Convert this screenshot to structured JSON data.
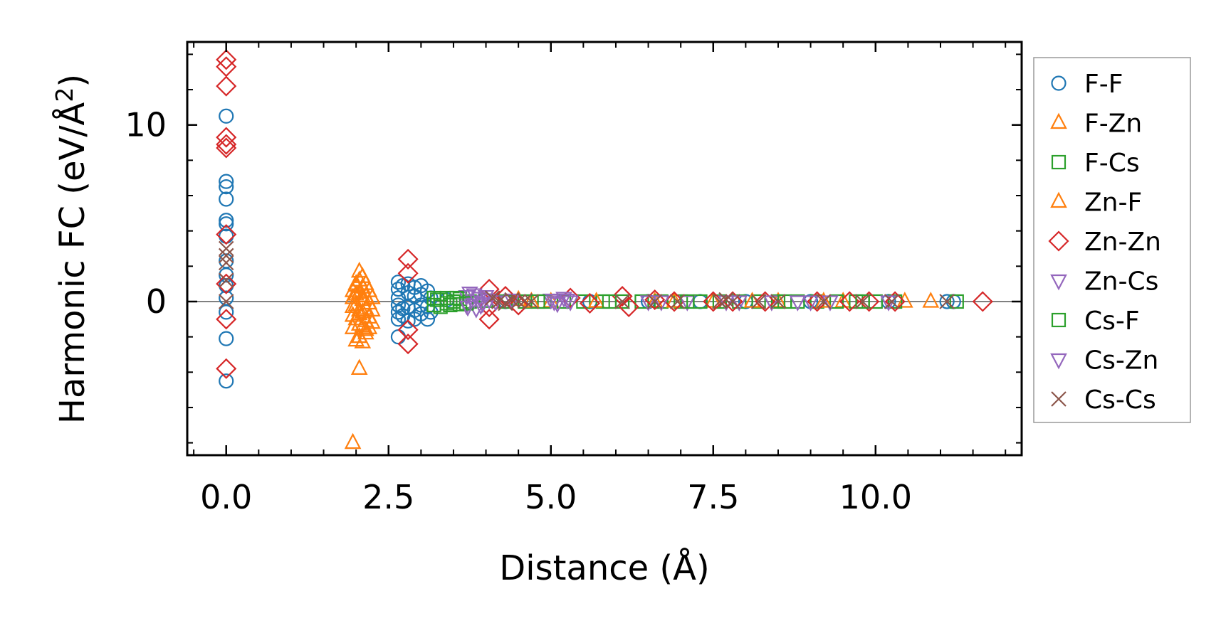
{
  "chart_data": {
    "type": "scatter",
    "title": "",
    "xlabel": "Distance (Å)",
    "ylabel_prefix": "Harmonic FC (eV/Å",
    "ylabel_sup": "2",
    "ylabel_suffix": ")",
    "xlim": [
      -0.6,
      12.25
    ],
    "ylim": [
      -8.7,
      14.7
    ],
    "xticks": [
      0.0,
      2.5,
      5.0,
      7.5,
      10.0
    ],
    "xtick_labels": [
      "0.0",
      "2.5",
      "5.0",
      "7.5",
      "10.0"
    ],
    "xminor_step": 0.5,
    "yticks": [
      0,
      10
    ],
    "ytick_labels": [
      "0",
      "10"
    ],
    "yminor_step": 2,
    "zero_line": true,
    "legend_position": "right-outside",
    "series": [
      {
        "name": "F-F",
        "marker": "circle",
        "color": "#1f77b4",
        "points": [
          [
            0,
            10.5
          ],
          [
            0,
            6.8
          ],
          [
            0,
            6.5
          ],
          [
            0,
            5.8
          ],
          [
            0,
            4.6
          ],
          [
            0,
            4.4
          ],
          [
            0,
            3.7
          ],
          [
            0,
            2.3
          ],
          [
            0,
            1.5
          ],
          [
            0,
            0.9
          ],
          [
            0,
            0.2
          ],
          [
            0,
            -0.6
          ],
          [
            0,
            -2.1
          ],
          [
            0,
            -4.5
          ],
          [
            2.65,
            1.1
          ],
          [
            2.65,
            0.7
          ],
          [
            2.65,
            0.2
          ],
          [
            2.65,
            -0.2
          ],
          [
            2.65,
            -0.6
          ],
          [
            2.65,
            -1.0
          ],
          [
            2.65,
            -2.0
          ],
          [
            2.72,
            0.9
          ],
          [
            2.72,
            -0.4
          ],
          [
            2.72,
            -0.8
          ],
          [
            2.8,
            1.0
          ],
          [
            2.8,
            0.5
          ],
          [
            2.8,
            -0.3
          ],
          [
            2.8,
            -1.1
          ],
          [
            2.9,
            0.8
          ],
          [
            2.9,
            0.3
          ],
          [
            2.9,
            -0.5
          ],
          [
            2.9,
            -1.0
          ],
          [
            3.0,
            0.9
          ],
          [
            3.0,
            0.4
          ],
          [
            3.0,
            -0.2
          ],
          [
            3.0,
            -0.7
          ],
          [
            3.1,
            0.6
          ],
          [
            3.1,
            -0.3
          ],
          [
            3.1,
            -1.0
          ],
          [
            3.15,
            0.2
          ],
          [
            3.15,
            -0.6
          ],
          [
            3.4,
            0.1
          ],
          [
            4.3,
            0.0
          ],
          [
            5.6,
            0.0
          ],
          [
            6.5,
            0.0
          ],
          [
            7.3,
            0.0
          ],
          [
            8.0,
            0.0
          ],
          [
            9.0,
            0.0
          ],
          [
            10.2,
            0.0
          ],
          [
            11.1,
            0.0
          ],
          [
            11.2,
            0.0
          ]
        ]
      },
      {
        "name": "F-Zn",
        "marker": "triangle-up",
        "color": "#ff7f0e",
        "points": [
          [
            1.95,
            -8.0
          ],
          [
            1.95,
            0.6
          ],
          [
            1.95,
            0.2
          ],
          [
            1.95,
            -0.3
          ],
          [
            1.95,
            -0.8
          ],
          [
            1.95,
            -1.5
          ],
          [
            2.0,
            1.0
          ],
          [
            2.0,
            0.4
          ],
          [
            2.0,
            -0.2
          ],
          [
            2.0,
            -1.0
          ],
          [
            2.0,
            -2.2
          ],
          [
            2.05,
            -3.8
          ],
          [
            2.05,
            1.7
          ],
          [
            2.05,
            1.2
          ],
          [
            2.05,
            0.5
          ],
          [
            2.05,
            -0.5
          ],
          [
            2.05,
            -1.3
          ],
          [
            2.05,
            -2.0
          ],
          [
            2.1,
            1.4
          ],
          [
            2.1,
            0.8
          ],
          [
            2.1,
            0.1
          ],
          [
            2.1,
            -0.6
          ],
          [
            2.1,
            -1.4
          ],
          [
            2.1,
            -2.3
          ],
          [
            2.15,
            1.0
          ],
          [
            2.15,
            0.3
          ],
          [
            2.15,
            -0.4
          ],
          [
            2.15,
            -1.1
          ],
          [
            2.15,
            -1.8
          ],
          [
            2.2,
            0.6
          ],
          [
            2.2,
            -0.1
          ],
          [
            2.2,
            -0.9
          ],
          [
            2.2,
            -1.5
          ],
          [
            2.25,
            0.2
          ],
          [
            2.25,
            -0.5
          ],
          [
            2.25,
            -1.2
          ],
          [
            4.5,
            0.1
          ],
          [
            5.0,
            0.0
          ],
          [
            6.6,
            0.0
          ],
          [
            7.5,
            0.0
          ],
          [
            8.5,
            0.0
          ],
          [
            9.5,
            0.0
          ],
          [
            10.45,
            0.0
          ],
          [
            10.85,
            0.0
          ]
        ]
      },
      {
        "name": "F-Cs",
        "marker": "square",
        "color": "#2ca02c",
        "points": [
          [
            3.2,
            0.2
          ],
          [
            3.2,
            -0.2
          ],
          [
            3.3,
            0.1
          ],
          [
            3.3,
            -0.3
          ],
          [
            3.4,
            0.2
          ],
          [
            3.4,
            -0.1
          ],
          [
            3.5,
            0.0
          ],
          [
            3.6,
            0.15
          ],
          [
            3.6,
            -0.15
          ],
          [
            3.75,
            0.0
          ],
          [
            4.0,
            0.05
          ],
          [
            4.3,
            0.0
          ],
          [
            4.6,
            0.0
          ],
          [
            4.9,
            0.0
          ],
          [
            5.2,
            0.0
          ],
          [
            5.5,
            0.0
          ],
          [
            5.8,
            0.0
          ],
          [
            6.1,
            0.0
          ],
          [
            6.4,
            0.0
          ],
          [
            6.7,
            0.0
          ],
          [
            7.0,
            0.0
          ],
          [
            7.3,
            0.0
          ],
          [
            7.6,
            0.0
          ],
          [
            7.9,
            0.0
          ],
          [
            8.2,
            0.0
          ],
          [
            8.5,
            0.0
          ],
          [
            8.8,
            0.0
          ],
          [
            9.1,
            0.0
          ],
          [
            9.4,
            0.0
          ],
          [
            9.7,
            0.0
          ],
          [
            10.0,
            0.0
          ],
          [
            10.3,
            0.0
          ],
          [
            11.25,
            0.0
          ]
        ]
      },
      {
        "name": "Zn-F",
        "marker": "triangle-up",
        "color": "#ff7f0e",
        "points": [
          [
            2.0,
            0.9
          ],
          [
            2.05,
            -0.7
          ],
          [
            2.1,
            0.3
          ],
          [
            2.15,
            -1.6
          ],
          [
            4.7,
            0.0
          ],
          [
            5.7,
            0.0
          ],
          [
            6.9,
            0.0
          ],
          [
            8.1,
            0.0
          ],
          [
            9.2,
            0.0
          ]
        ]
      },
      {
        "name": "Zn-Zn",
        "marker": "diamond",
        "color": "#d62728",
        "points": [
          [
            0,
            13.7
          ],
          [
            0,
            13.3
          ],
          [
            0,
            12.2
          ],
          [
            0,
            9.3
          ],
          [
            0,
            8.9
          ],
          [
            0,
            8.7
          ],
          [
            0,
            3.8
          ],
          [
            0,
            1.0
          ],
          [
            0,
            -1.0
          ],
          [
            0,
            -3.8
          ],
          [
            2.8,
            2.4
          ],
          [
            2.8,
            1.6
          ],
          [
            2.8,
            -1.6
          ],
          [
            2.8,
            -2.4
          ],
          [
            4.05,
            0.7
          ],
          [
            4.05,
            -0.3
          ],
          [
            4.05,
            -1.0
          ],
          [
            4.3,
            0.3
          ],
          [
            4.5,
            -0.2
          ],
          [
            5.3,
            0.2
          ],
          [
            5.6,
            -0.1
          ],
          [
            6.1,
            0.3
          ],
          [
            6.2,
            -0.3
          ],
          [
            6.6,
            0.1
          ],
          [
            6.9,
            0.0
          ],
          [
            7.5,
            0.0
          ],
          [
            7.8,
            0.0
          ],
          [
            8.3,
            0.0
          ],
          [
            9.1,
            0.0
          ],
          [
            9.6,
            0.0
          ],
          [
            9.9,
            0.0
          ],
          [
            10.3,
            0.0
          ],
          [
            11.65,
            0.0
          ]
        ]
      },
      {
        "name": "Zn-Cs",
        "marker": "triangle-down",
        "color": "#9467bd",
        "points": [
          [
            3.7,
            0.3
          ],
          [
            3.7,
            -0.2
          ],
          [
            3.75,
            0.5
          ],
          [
            3.8,
            0.0
          ],
          [
            3.85,
            -0.4
          ],
          [
            3.9,
            0.2
          ],
          [
            3.95,
            -0.1
          ],
          [
            4.0,
            0.3
          ],
          [
            4.15,
            0.0
          ],
          [
            4.4,
            0.1
          ],
          [
            5.0,
            0.1
          ],
          [
            5.1,
            -0.1
          ],
          [
            5.2,
            0.2
          ],
          [
            5.3,
            0.0
          ],
          [
            6.5,
            0.0
          ],
          [
            7.1,
            0.0
          ],
          [
            7.9,
            0.0
          ],
          [
            8.4,
            0.0
          ],
          [
            9.0,
            0.0
          ],
          [
            9.3,
            0.0
          ]
        ]
      },
      {
        "name": "Cs-F",
        "marker": "square",
        "color": "#2ca02c",
        "points": [
          [
            3.25,
            0.1
          ],
          [
            3.45,
            -0.2
          ],
          [
            3.55,
            0.2
          ],
          [
            3.7,
            -0.1
          ],
          [
            4.8,
            0.0
          ],
          [
            5.9,
            0.0
          ],
          [
            7.1,
            0.0
          ],
          [
            8.6,
            0.0
          ],
          [
            9.8,
            0.0
          ]
        ]
      },
      {
        "name": "Cs-Zn",
        "marker": "triangle-down",
        "color": "#9467bd",
        "points": [
          [
            3.72,
            -0.3
          ],
          [
            3.82,
            0.4
          ],
          [
            3.92,
            -0.2
          ],
          [
            4.05,
            0.1
          ],
          [
            5.05,
            0.0
          ],
          [
            5.25,
            0.1
          ],
          [
            6.7,
            0.0
          ],
          [
            7.7,
            0.0
          ],
          [
            8.8,
            0.0
          ],
          [
            10.2,
            0.0
          ]
        ]
      },
      {
        "name": "Cs-Cs",
        "marker": "x",
        "color": "#8c564b",
        "points": [
          [
            0,
            3.0
          ],
          [
            0,
            2.6
          ],
          [
            0,
            2.2
          ],
          [
            0,
            1.2
          ],
          [
            0,
            0.0
          ],
          [
            4.1,
            0.2
          ],
          [
            4.2,
            0.0
          ],
          [
            4.3,
            -0.1
          ],
          [
            4.4,
            0.1
          ],
          [
            4.5,
            0.0
          ],
          [
            4.6,
            0.05
          ],
          [
            4.7,
            0.0
          ],
          [
            6.1,
            0.0
          ],
          [
            6.6,
            0.0
          ],
          [
            6.95,
            0.0
          ],
          [
            7.6,
            0.0
          ],
          [
            7.7,
            0.1
          ],
          [
            7.8,
            0.0
          ],
          [
            8.2,
            0.0
          ],
          [
            8.5,
            0.0
          ],
          [
            9.2,
            0.0
          ],
          [
            9.8,
            0.0
          ],
          [
            10.25,
            0.0
          ],
          [
            11.1,
            0.0
          ]
        ]
      }
    ]
  }
}
